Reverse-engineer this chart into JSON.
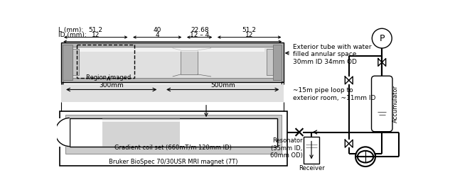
{
  "background_color": "#ffffff",
  "fig_width": 6.4,
  "fig_height": 2.71,
  "dpi": 100,
  "L_label": "L (mm):",
  "ID_label": "ID (mm):",
  "L_values": [
    "51.2",
    "40",
    "22.68",
    "51.2"
  ],
  "ID_values": [
    "12",
    "4",
    "12 – 4",
    "12"
  ],
  "gradient_coil_label": "Gradient coil set (660mT/m 120mm ID)",
  "magnet_label": "Bruker BioSpec 70/30USR MRI magnet (7T)",
  "exterior_tube_label": "Exterior tube with water\nfilled annular space\n30mm ID 34mm OD",
  "pipe_loop_label": "~15m pipe loop to\nexterior room, ~11mm ID",
  "accumulator_label": "Accumulator",
  "pressure_label": "P",
  "resonator_label": "Resonator\n(35mm ID,\n60mm OD)",
  "receiver_label": "Receiver",
  "region_imaged_label": "Region imaged",
  "measurements_300": "300mm",
  "measurements_500": "500mm",
  "line_color": "#000000",
  "gray_light": "#cccccc",
  "gray_mid": "#aaaaaa",
  "gray_dark": "#666666",
  "gray_tube": "#b8b8b8"
}
